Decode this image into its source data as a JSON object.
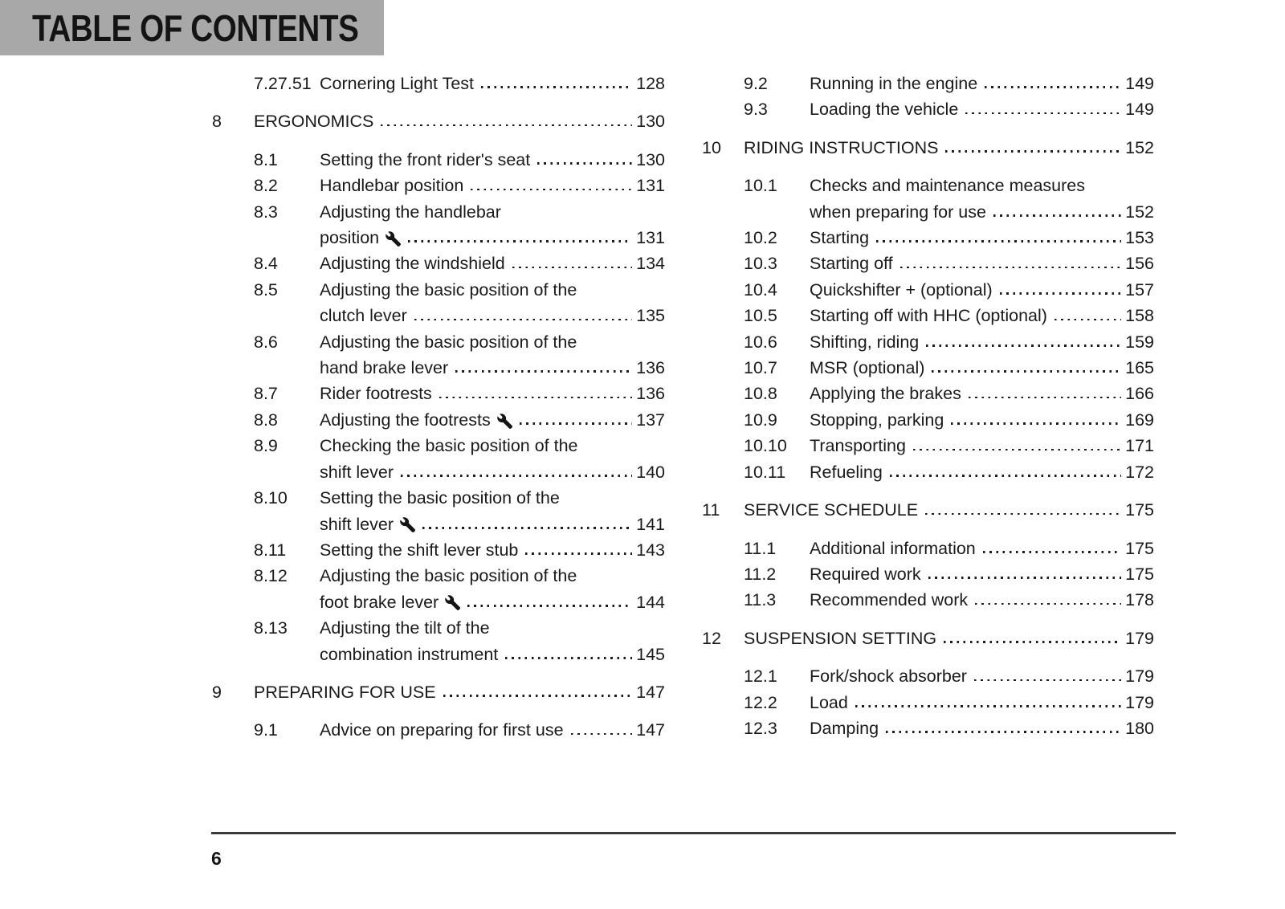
{
  "page": {
    "title": "TABLE OF CONTENTS",
    "page_number": "6",
    "colors": {
      "header_bg": "#a8a8a8",
      "text": "#1a1a1a"
    }
  },
  "toc": {
    "left": [
      {
        "num": "7.27.51",
        "type": "sub",
        "lines": [
          "Cornering Light Test"
        ],
        "page": "128"
      },
      {
        "num": "8",
        "type": "chapter",
        "lines": [
          "ERGONOMICS"
        ],
        "page": "130"
      },
      {
        "num": "8.1",
        "type": "sub",
        "lines": [
          "Setting the front rider's seat"
        ],
        "page": "130"
      },
      {
        "num": "8.2",
        "type": "sub",
        "lines": [
          "Handlebar position"
        ],
        "page": "131"
      },
      {
        "num": "8.3",
        "type": "sub",
        "lines": [
          "Adjusting the handlebar",
          "position"
        ],
        "wrench": true,
        "page": "131"
      },
      {
        "num": "8.4",
        "type": "sub",
        "lines": [
          "Adjusting the windshield"
        ],
        "page": "134"
      },
      {
        "num": "8.5",
        "type": "sub",
        "lines": [
          "Adjusting the basic position of the",
          "clutch lever"
        ],
        "page": "135"
      },
      {
        "num": "8.6",
        "type": "sub",
        "lines": [
          "Adjusting the basic position of the",
          "hand brake lever"
        ],
        "page": "136"
      },
      {
        "num": "8.7",
        "type": "sub",
        "lines": [
          "Rider footrests"
        ],
        "page": "136"
      },
      {
        "num": "8.8",
        "type": "sub",
        "lines": [
          "Adjusting the footrests"
        ],
        "wrench": true,
        "page": "137"
      },
      {
        "num": "8.9",
        "type": "sub",
        "lines": [
          "Checking the basic position of the",
          "shift lever"
        ],
        "page": "140"
      },
      {
        "num": "8.10",
        "type": "sub",
        "lines": [
          "Setting the basic position of the",
          "shift lever"
        ],
        "wrench": true,
        "page": "141"
      },
      {
        "num": "8.11",
        "type": "sub",
        "lines": [
          "Setting the shift lever stub"
        ],
        "page": "143"
      },
      {
        "num": "8.12",
        "type": "sub",
        "lines": [
          "Adjusting the basic position of the",
          "foot brake lever"
        ],
        "wrench": true,
        "page": "144"
      },
      {
        "num": "8.13",
        "type": "sub",
        "lines": [
          "Adjusting the tilt of the",
          "combination instrument"
        ],
        "page": "145"
      },
      {
        "num": "9",
        "type": "chapter",
        "lines": [
          "PREPARING FOR USE"
        ],
        "page": "147"
      },
      {
        "num": "9.1",
        "type": "sub",
        "lines": [
          "Advice on preparing for first use"
        ],
        "page": "147"
      }
    ],
    "right": [
      {
        "num": "9.2",
        "type": "sub",
        "lines": [
          "Running in the engine"
        ],
        "page": "149"
      },
      {
        "num": "9.3",
        "type": "sub",
        "lines": [
          "Loading the vehicle"
        ],
        "page": "149"
      },
      {
        "num": "10",
        "type": "chapter",
        "lines": [
          "RIDING INSTRUCTIONS"
        ],
        "page": "152"
      },
      {
        "num": "10.1",
        "type": "sub",
        "lines": [
          "Checks and maintenance measures",
          "when preparing for use"
        ],
        "page": "152"
      },
      {
        "num": "10.2",
        "type": "sub",
        "lines": [
          "Starting"
        ],
        "page": "153"
      },
      {
        "num": "10.3",
        "type": "sub",
        "lines": [
          "Starting off"
        ],
        "page": "156"
      },
      {
        "num": "10.4",
        "type": "sub",
        "lines": [
          "Quickshifter + (optional)"
        ],
        "page": "157"
      },
      {
        "num": "10.5",
        "type": "sub",
        "lines": [
          "Starting off with HHC (optional)"
        ],
        "page": "158"
      },
      {
        "num": "10.6",
        "type": "sub",
        "lines": [
          "Shifting, riding"
        ],
        "page": "159"
      },
      {
        "num": "10.7",
        "type": "sub",
        "lines": [
          "MSR (optional)"
        ],
        "page": "165"
      },
      {
        "num": "10.8",
        "type": "sub",
        "lines": [
          "Applying the brakes"
        ],
        "page": "166"
      },
      {
        "num": "10.9",
        "type": "sub",
        "lines": [
          "Stopping, parking"
        ],
        "page": "169"
      },
      {
        "num": "10.10",
        "type": "sub",
        "lines": [
          "Transporting"
        ],
        "page": "171"
      },
      {
        "num": "10.11",
        "type": "sub",
        "lines": [
          "Refueling"
        ],
        "page": "172"
      },
      {
        "num": "11",
        "type": "chapter",
        "lines": [
          "SERVICE SCHEDULE"
        ],
        "page": "175"
      },
      {
        "num": "11.1",
        "type": "sub",
        "lines": [
          "Additional information"
        ],
        "page": "175"
      },
      {
        "num": "11.2",
        "type": "sub",
        "lines": [
          "Required work"
        ],
        "page": "175"
      },
      {
        "num": "11.3",
        "type": "sub",
        "lines": [
          "Recommended work"
        ],
        "page": "178"
      },
      {
        "num": "12",
        "type": "chapter",
        "lines": [
          "SUSPENSION SETTING"
        ],
        "page": "179"
      },
      {
        "num": "12.1",
        "type": "sub",
        "lines": [
          "Fork/shock absorber"
        ],
        "page": "179"
      },
      {
        "num": "12.2",
        "type": "sub",
        "lines": [
          "Load"
        ],
        "page": "179"
      },
      {
        "num": "12.3",
        "type": "sub",
        "lines": [
          "Damping"
        ],
        "page": "180"
      }
    ]
  }
}
